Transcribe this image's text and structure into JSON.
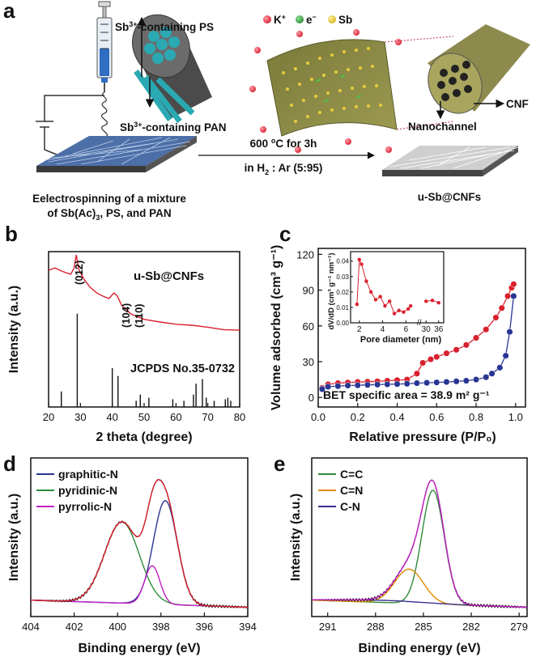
{
  "panel_a": {
    "letter": "a",
    "legend": {
      "k": "K",
      "k_sup": "+",
      "e": "e",
      "e_sup": "−",
      "sb": "Sb"
    },
    "ps_label": {
      "pre": "Sb",
      "sup": "3+",
      "post": "-containing PS"
    },
    "pan_label": {
      "pre": "Sb",
      "sup": "3+",
      "post": "-containing PAN"
    },
    "arrow_top": {
      "pre": "600 ",
      "sup": "o",
      "post": "C for 3h"
    },
    "arrow_bottom": {
      "pre": "in H",
      "sub": "2",
      "post": " : Ar (5:95)"
    },
    "cnf": "CNF",
    "nanochannel": "Nanochannel",
    "product": "u-Sb@CNFs",
    "caption_l1": "Eelectrospinning of a mixture",
    "caption_l2_pre": "of Sb(Ac)",
    "caption_l2_sub": "3",
    "caption_l2_post": ", PS, and PAN"
  },
  "colors": {
    "red": "#d9202e",
    "blue": "#283593",
    "green": "#2e8b3a",
    "magenta": "#c21ec2",
    "orange": "#e08a00",
    "navy": "#3b2f8f"
  },
  "chart_data": [
    {
      "panel": "b",
      "type": "line",
      "title": "u-Sb@CNFs",
      "xlabel": "2 theta (degree)",
      "ylabel": "Intensity (a.u.)",
      "xlim": [
        20,
        80
      ],
      "xticks": [
        "20",
        "30",
        "40",
        "50",
        "60",
        "70",
        "80"
      ],
      "reference": "JCPDS No.35-0732",
      "annotations": [
        "(012)",
        "(104)",
        "(110)"
      ],
      "series": [
        {
          "x": [
            20,
            22,
            24,
            26,
            27,
            28,
            28.7,
            29.5,
            31,
            33,
            35,
            37,
            39,
            40.5,
            41.5,
            43,
            46,
            50,
            55,
            60,
            65,
            70,
            75,
            80
          ],
          "y": [
            0.88,
            0.89,
            0.87,
            0.86,
            0.86,
            0.9,
            0.98,
            0.88,
            0.82,
            0.77,
            0.74,
            0.72,
            0.7,
            0.73,
            0.71,
            0.65,
            0.6,
            0.57,
            0.55,
            0.53,
            0.52,
            0.51,
            0.5,
            0.5
          ]
        }
      ],
      "sticks": {
        "x": [
          24,
          29,
          40,
          41.8,
          47.5,
          48.8,
          51.5,
          59,
          62.5,
          65.5,
          66.3,
          68.3,
          69.5,
          72,
          75.5,
          76.3,
          77.2
        ],
        "y": [
          0.1,
          0.6,
          0.25,
          0.2,
          0.04,
          0.08,
          0.06,
          0.05,
          0.04,
          0.08,
          0.15,
          0.18,
          0.06,
          0.04,
          0.05,
          0.06,
          0.04
        ]
      }
    },
    {
      "panel": "c",
      "type": "line",
      "xlabel": "Relative pressure (P/P₀)",
      "ylabel": "Volume adsorbed (cm³ g⁻¹)",
      "xlim": [
        0,
        1.05
      ],
      "ylim": [
        -8,
        125
      ],
      "xticks": [
        "0.0",
        "0.2",
        "0.4",
        "0.6",
        "0.8",
        "1.0"
      ],
      "yticks": [
        "0",
        "30",
        "60",
        "90",
        "120"
      ],
      "annotation": "BET specific area = 38.9 m² g⁻¹",
      "series": [
        {
          "x": [
            0.02,
            0.05,
            0.1,
            0.15,
            0.2,
            0.25,
            0.3,
            0.35,
            0.4,
            0.45,
            0.5,
            0.53,
            0.57,
            0.6,
            0.65,
            0.7,
            0.75,
            0.8,
            0.85,
            0.9,
            0.93,
            0.96,
            0.98,
            0.99
          ],
          "y": [
            8,
            11,
            12,
            12.5,
            13,
            13.2,
            13.5,
            14,
            14.5,
            15,
            20,
            29,
            32,
            34,
            37,
            40,
            44,
            50,
            57,
            67,
            75,
            85,
            92,
            95
          ]
        },
        {
          "x": [
            0.02,
            0.05,
            0.1,
            0.15,
            0.2,
            0.25,
            0.3,
            0.35,
            0.4,
            0.45,
            0.5,
            0.55,
            0.6,
            0.65,
            0.7,
            0.75,
            0.8,
            0.85,
            0.88,
            0.92,
            0.95,
            0.97,
            0.99
          ],
          "y": [
            7,
            9,
            9.5,
            10,
            10.2,
            10.5,
            10.8,
            11,
            11.2,
            11.5,
            12,
            12.3,
            12.6,
            13,
            13.5,
            14,
            15,
            17,
            20,
            25,
            35,
            55,
            85
          ]
        }
      ],
      "inset": {
        "xlabel": "Pore diameter (nm)",
        "ylabel": "dV/dD (cm³ g⁻¹ nm⁻¹)",
        "xticks": [
          "2",
          "4",
          "6",
          "30",
          "36"
        ],
        "yticks": [
          "0.00",
          "0.01",
          "0.02",
          "0.03",
          "0.04"
        ],
        "ylim": [
          0,
          0.043
        ],
        "series": [
          {
            "x": [
              1.8,
              2,
              2.2,
              2.6,
              3,
              3.4,
              3.8,
              4.2,
              4.6,
              5,
              5.4,
              5.8,
              6.2,
              6.4
            ],
            "y": [
              0.012,
              0.041,
              0.038,
              0.027,
              0.02,
              0.015,
              0.017,
              0.011,
              0.014,
              0.006,
              0.008,
              0.007,
              0.009,
              0.011
            ]
          },
          {
            "x": [
              30,
              33,
              36
            ],
            "y": [
              0.014,
              0.0145,
              0.013
            ]
          }
        ]
      }
    },
    {
      "panel": "d",
      "type": "line",
      "xlabel": "Binding energy (eV)",
      "ylabel": "Intensity (a.u.)",
      "xlim": [
        404,
        394
      ],
      "xticks": [
        "404",
        "402",
        "400",
        "398",
        "396",
        "394"
      ],
      "series": [
        {
          "name": "graphitic-N",
          "center": 397.8,
          "height": 0.73,
          "width": 0.55
        },
        {
          "name": "pyridinic-N",
          "center": 399.8,
          "height": 0.57,
          "width": 0.8
        },
        {
          "name": "pyrrolic-N",
          "center": 398.4,
          "height": 0.27,
          "width": 0.35
        }
      ]
    },
    {
      "panel": "e",
      "type": "line",
      "xlabel": "Binding energy (eV)",
      "ylabel": "Intensity (a.u.)",
      "xlim": [
        292,
        278.5
      ],
      "xticks": [
        "291",
        "288",
        "285",
        "282",
        "279"
      ],
      "series": [
        {
          "name": "C=C",
          "center": 284.4,
          "height": 0.8,
          "width": 0.7
        },
        {
          "name": "C=N",
          "center": 285.9,
          "height": 0.24,
          "width": 0.9
        },
        {
          "name": "C-N",
          "center": 287.5,
          "height": 0.015,
          "width": 2.5
        }
      ]
    }
  ]
}
